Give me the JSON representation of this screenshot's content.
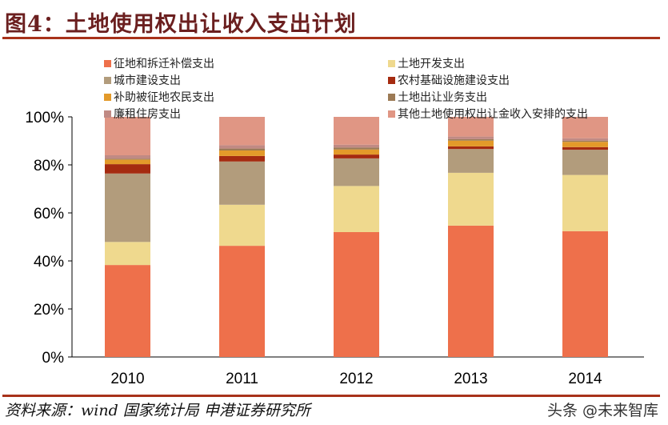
{
  "title": "图4：土地使用权出让收入支出计划",
  "source": "资料来源：wind 国家统计局 申港证券研究所",
  "watermark": "头条 @未来智库",
  "chart_data": {
    "type": "bar",
    "stacked": true,
    "percent": true,
    "categories": [
      "2010",
      "2011",
      "2012",
      "2013",
      "2014"
    ],
    "ylim": [
      0,
      100
    ],
    "yticks": [
      "0%",
      "20%",
      "40%",
      "60%",
      "80%",
      "100%"
    ],
    "grid": false,
    "legend_placement": "top",
    "series": [
      {
        "name": "征地和拆迁补偿支出",
        "color": "#EE704B",
        "values": [
          38.3,
          46.3,
          52.0,
          54.7,
          52.4
        ]
      },
      {
        "name": "土地开发支出",
        "color": "#EFD98E",
        "values": [
          9.6,
          17.1,
          19.2,
          22.0,
          23.4
        ]
      },
      {
        "name": "城市建设支出",
        "color": "#B29C7C",
        "values": [
          28.5,
          18.0,
          11.5,
          9.9,
          10.5
        ]
      },
      {
        "name": "农村基础设施建设支出",
        "color": "#A52B10",
        "values": [
          3.9,
          2.3,
          1.6,
          1.1,
          1.1
        ]
      },
      {
        "name": "补助被征地农民支出",
        "color": "#E39A2A",
        "values": [
          1.9,
          2.3,
          2.1,
          2.4,
          2.2
        ]
      },
      {
        "name": "土地出让业务支出",
        "color": "#9C7A55",
        "values": [
          0.4,
          0.8,
          0.8,
          0.6,
          0.5
        ]
      },
      {
        "name": "廉租住房支出",
        "color": "#C08A84",
        "values": [
          1.4,
          1.4,
          1.2,
          1.1,
          1.0
        ]
      },
      {
        "name": "其他土地使用权出让金收入安排的支出",
        "color": "#E09684",
        "values": [
          16.0,
          11.8,
          11.6,
          8.2,
          8.9
        ]
      }
    ]
  }
}
